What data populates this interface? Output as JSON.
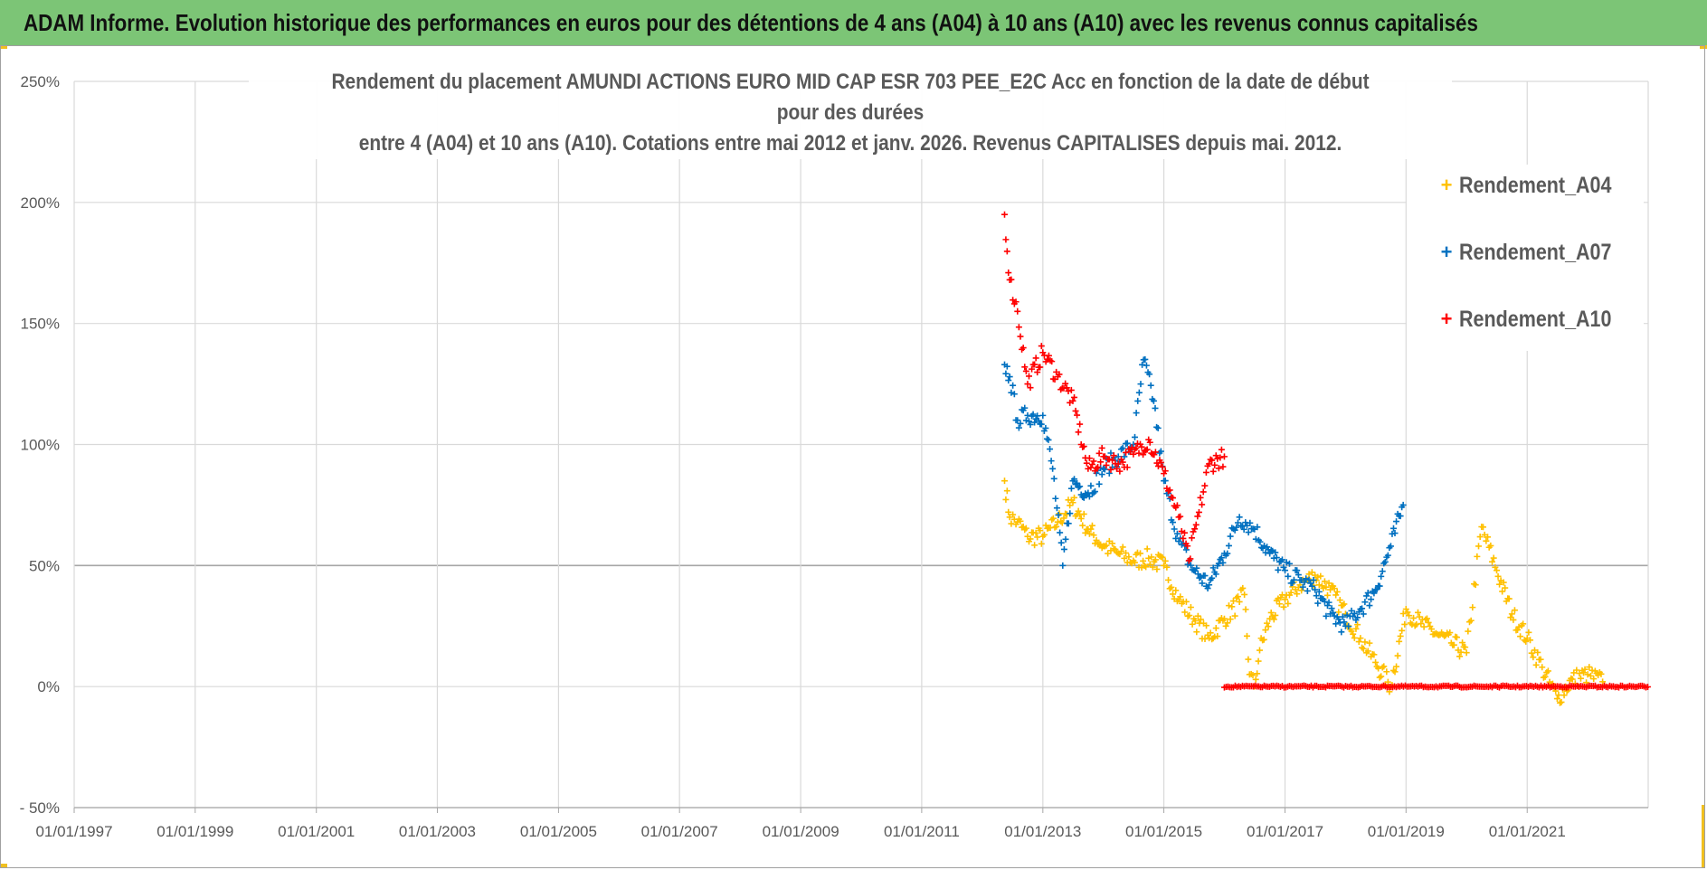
{
  "header": {
    "title": "ADAM Informe. Evolution historique des performances en euros pour des détentions de 4 ans (A04) à 10 ans (A10) avec les revenus connus capitalisés"
  },
  "colors": {
    "header_bg": "#7cc576",
    "accent_corner": "#f0c020",
    "A04": "#ffc000",
    "A07": "#0070c0",
    "A10": "#ff0000"
  },
  "chart_data": {
    "type": "scatter",
    "title_line1": "Rendement du placement AMUNDI ACTIONS EURO MID CAP ESR 703 PEE_E2C Acc en fonction de la date de début pour des durées",
    "title_line2": "entre 4 (A04) et 10 ans (A10). Cotations entre mai 2012 et janv. 2026. Revenus CAPITALISES depuis mai. 2012.",
    "xlabel": "",
    "ylabel": "",
    "x_ticks": [
      "01/01/1997",
      "01/01/1999",
      "01/01/2001",
      "01/01/2003",
      "01/01/2005",
      "01/01/2007",
      "01/01/2009",
      "01/01/2011",
      "01/01/2013",
      "01/01/2015",
      "01/01/2017",
      "01/01/2019",
      "01/01/2021"
    ],
    "x_range": [
      "1997-01-01",
      "2023-01-01"
    ],
    "y_ticks": [
      "250%",
      "200%",
      "150%",
      "100%",
      "50%",
      "0%",
      "- 50%"
    ],
    "ylim": [
      -50,
      250
    ],
    "grid": true,
    "legend_position": "top-right",
    "marker": "+",
    "series": [
      {
        "name": "Rendement_A04",
        "color": "#ffc000",
        "points": [
          [
            "2012-05-15",
            85
          ],
          [
            "2012-06-15",
            70
          ],
          [
            "2012-08-01",
            68
          ],
          [
            "2012-10-01",
            62
          ],
          [
            "2013-01-01",
            62
          ],
          [
            "2013-04-01",
            68
          ],
          [
            "2013-07-01",
            76
          ],
          [
            "2013-10-01",
            65
          ],
          [
            "2014-01-01",
            58
          ],
          [
            "2014-04-01",
            55
          ],
          [
            "2014-07-01",
            52
          ],
          [
            "2014-10-01",
            53
          ],
          [
            "2015-01-01",
            50
          ],
          [
            "2015-04-01",
            36
          ],
          [
            "2015-07-01",
            28
          ],
          [
            "2015-10-01",
            20
          ],
          [
            "2016-01-01",
            28
          ],
          [
            "2016-04-01",
            35
          ],
          [
            "2016-05-01",
            38
          ],
          [
            "2016-06-01",
            5
          ],
          [
            "2016-07-01",
            0
          ],
          [
            "2016-08-01",
            15
          ],
          [
            "2016-10-01",
            28
          ],
          [
            "2017-01-01",
            36
          ],
          [
            "2017-04-01",
            42
          ],
          [
            "2017-07-01",
            46
          ],
          [
            "2017-10-01",
            40
          ],
          [
            "2018-01-01",
            30
          ],
          [
            "2018-04-01",
            20
          ],
          [
            "2018-07-01",
            10
          ],
          [
            "2018-10-01",
            0
          ],
          [
            "2019-01-01",
            32
          ],
          [
            "2019-04-01",
            26
          ],
          [
            "2019-07-01",
            22
          ],
          [
            "2019-10-01",
            18
          ],
          [
            "2020-01-01",
            14
          ],
          [
            "2020-04-01",
            66
          ],
          [
            "2020-07-01",
            48
          ],
          [
            "2020-10-01",
            30
          ],
          [
            "2021-01-01",
            20
          ],
          [
            "2021-04-01",
            8
          ],
          [
            "2021-07-01",
            -5
          ],
          [
            "2021-10-01",
            3
          ],
          [
            "2022-01-01",
            5
          ],
          [
            "2022-04-01",
            2
          ]
        ]
      },
      {
        "name": "Rendement_A07",
        "color": "#0070c0",
        "points": [
          [
            "2012-05-15",
            133
          ],
          [
            "2012-06-15",
            128
          ],
          [
            "2012-08-01",
            110
          ],
          [
            "2012-10-01",
            112
          ],
          [
            "2013-01-01",
            112
          ],
          [
            "2013-03-01",
            90
          ],
          [
            "2013-05-01",
            50
          ],
          [
            "2013-07-01",
            85
          ],
          [
            "2013-10-01",
            80
          ],
          [
            "2014-01-01",
            90
          ],
          [
            "2014-04-01",
            95
          ],
          [
            "2014-07-01",
            100
          ],
          [
            "2014-09-01",
            135
          ],
          [
            "2014-11-01",
            118
          ],
          [
            "2015-01-01",
            85
          ],
          [
            "2015-04-01",
            60
          ],
          [
            "2015-07-01",
            48
          ],
          [
            "2015-10-01",
            42
          ],
          [
            "2016-01-01",
            55
          ],
          [
            "2016-04-01",
            70
          ],
          [
            "2016-07-01",
            65
          ],
          [
            "2016-10-01",
            55
          ],
          [
            "2017-01-01",
            48
          ],
          [
            "2017-04-01",
            44
          ],
          [
            "2017-07-01",
            40
          ],
          [
            "2017-10-01",
            30
          ],
          [
            "2018-01-01",
            25
          ],
          [
            "2018-04-01",
            32
          ],
          [
            "2018-07-01",
            40
          ],
          [
            "2018-10-01",
            58
          ],
          [
            "2018-12-15",
            75
          ]
        ]
      },
      {
        "name": "Rendement_A10",
        "color": "#ff0000",
        "points": [
          [
            "2012-05-15",
            195
          ],
          [
            "2012-06-15",
            168
          ],
          [
            "2012-08-01",
            155
          ],
          [
            "2012-10-01",
            125
          ],
          [
            "2013-01-01",
            138
          ],
          [
            "2013-04-01",
            128
          ],
          [
            "2013-07-01",
            118
          ],
          [
            "2013-10-01",
            90
          ],
          [
            "2014-01-01",
            95
          ],
          [
            "2014-04-01",
            92
          ],
          [
            "2014-07-01",
            96
          ],
          [
            "2014-10-01",
            102
          ],
          [
            "2015-01-01",
            88
          ],
          [
            "2015-04-01",
            70
          ],
          [
            "2015-06-01",
            52
          ],
          [
            "2015-08-01",
            72
          ],
          [
            "2015-10-01",
            92
          ],
          [
            "2016-01-01",
            95
          ]
        ],
        "flat_zero_from": "2016-01-01",
        "flat_zero_to": "2023-01-01"
      }
    ]
  }
}
